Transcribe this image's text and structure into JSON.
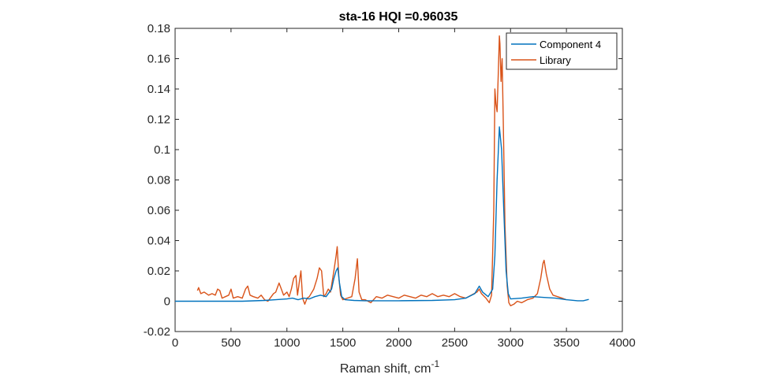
{
  "chart_data": {
    "type": "line",
    "title": "sta-16 HQI =0.96035",
    "xlabel": "Raman shift, cm",
    "xlabel_superscript": "-1",
    "ylabel": "",
    "xlim": [
      0,
      4000
    ],
    "ylim": [
      -0.02,
      0.18
    ],
    "x_ticks": [
      0,
      500,
      1000,
      1500,
      2000,
      2500,
      3000,
      3500,
      4000
    ],
    "x_tick_labels": [
      "0",
      "500",
      "1000",
      "1500",
      "2000",
      "2500",
      "3000",
      "3500",
      "4000"
    ],
    "y_ticks": [
      -0.02,
      0,
      0.02,
      0.04,
      0.06,
      0.08,
      0.1,
      0.12,
      0.14,
      0.16,
      0.18
    ],
    "y_tick_labels": [
      "-0.02",
      "0",
      "0.02",
      "0.04",
      "0.06",
      "0.08",
      "0.1",
      "0.12",
      "0.14",
      "0.16",
      "0.18"
    ],
    "grid": false,
    "legend_position": "top-right",
    "series": [
      {
        "name": "Component 4",
        "color": "#0072BD",
        "points": [
          [
            0,
            0.0
          ],
          [
            300,
            0.0
          ],
          [
            600,
            0.0
          ],
          [
            800,
            0.0005
          ],
          [
            900,
            0.001
          ],
          [
            1000,
            0.0015
          ],
          [
            1050,
            0.002
          ],
          [
            1100,
            0.001
          ],
          [
            1150,
            0.002
          ],
          [
            1200,
            0.0015
          ],
          [
            1250,
            0.003
          ],
          [
            1300,
            0.004
          ],
          [
            1350,
            0.003
          ],
          [
            1400,
            0.008
          ],
          [
            1420,
            0.015
          ],
          [
            1440,
            0.02
          ],
          [
            1455,
            0.022
          ],
          [
            1470,
            0.012
          ],
          [
            1490,
            0.003
          ],
          [
            1520,
            0.001
          ],
          [
            1600,
            0.0005
          ],
          [
            1700,
            0.0003
          ],
          [
            2000,
            0.0003
          ],
          [
            2300,
            0.0005
          ],
          [
            2500,
            0.001
          ],
          [
            2600,
            0.002
          ],
          [
            2680,
            0.005
          ],
          [
            2720,
            0.01
          ],
          [
            2750,
            0.006
          ],
          [
            2800,
            0.003
          ],
          [
            2840,
            0.008
          ],
          [
            2860,
            0.03
          ],
          [
            2880,
            0.08
          ],
          [
            2900,
            0.115
          ],
          [
            2920,
            0.1
          ],
          [
            2940,
            0.06
          ],
          [
            2960,
            0.02
          ],
          [
            2980,
            0.005
          ],
          [
            3000,
            0.0015
          ],
          [
            3100,
            0.002
          ],
          [
            3200,
            0.003
          ],
          [
            3300,
            0.0025
          ],
          [
            3400,
            0.002
          ],
          [
            3500,
            0.001
          ],
          [
            3600,
            0.0003
          ],
          [
            3650,
            0.0003
          ],
          [
            3700,
            0.0012
          ]
        ]
      },
      {
        "name": "Library",
        "color": "#D95319",
        "points": [
          [
            200,
            0.007
          ],
          [
            210,
            0.009
          ],
          [
            230,
            0.005
          ],
          [
            260,
            0.006
          ],
          [
            300,
            0.004
          ],
          [
            330,
            0.005
          ],
          [
            360,
            0.004
          ],
          [
            380,
            0.008
          ],
          [
            400,
            0.007
          ],
          [
            420,
            0.002
          ],
          [
            450,
            0.003
          ],
          [
            480,
            0.004
          ],
          [
            500,
            0.008
          ],
          [
            520,
            0.002
          ],
          [
            560,
            0.003
          ],
          [
            600,
            0.002
          ],
          [
            630,
            0.008
          ],
          [
            650,
            0.01
          ],
          [
            670,
            0.004
          ],
          [
            700,
            0.003
          ],
          [
            740,
            0.002
          ],
          [
            770,
            0.004
          ],
          [
            800,
            0.001
          ],
          [
            830,
            0.0
          ],
          [
            860,
            0.003
          ],
          [
            880,
            0.005
          ],
          [
            900,
            0.006
          ],
          [
            930,
            0.012
          ],
          [
            950,
            0.008
          ],
          [
            970,
            0.004
          ],
          [
            1000,
            0.006
          ],
          [
            1020,
            0.003
          ],
          [
            1040,
            0.008
          ],
          [
            1060,
            0.015
          ],
          [
            1080,
            0.017
          ],
          [
            1095,
            0.004
          ],
          [
            1110,
            0.012
          ],
          [
            1125,
            0.02
          ],
          [
            1140,
            0.002
          ],
          [
            1160,
            -0.002
          ],
          [
            1180,
            0.002
          ],
          [
            1200,
            0.003
          ],
          [
            1240,
            0.008
          ],
          [
            1270,
            0.015
          ],
          [
            1290,
            0.022
          ],
          [
            1310,
            0.02
          ],
          [
            1330,
            0.003
          ],
          [
            1350,
            0.005
          ],
          [
            1370,
            0.008
          ],
          [
            1390,
            0.006
          ],
          [
            1420,
            0.02
          ],
          [
            1440,
            0.03
          ],
          [
            1450,
            0.036
          ],
          [
            1465,
            0.015
          ],
          [
            1480,
            0.004
          ],
          [
            1500,
            0.001
          ],
          [
            1540,
            0.002
          ],
          [
            1580,
            0.003
          ],
          [
            1610,
            0.015
          ],
          [
            1630,
            0.028
          ],
          [
            1645,
            0.006
          ],
          [
            1670,
            0.001
          ],
          [
            1700,
            0.001
          ],
          [
            1750,
            -0.001
          ],
          [
            1800,
            0.003
          ],
          [
            1850,
            0.002
          ],
          [
            1900,
            0.004
          ],
          [
            1950,
            0.003
          ],
          [
            2000,
            0.002
          ],
          [
            2050,
            0.004
          ],
          [
            2100,
            0.003
          ],
          [
            2150,
            0.002
          ],
          [
            2200,
            0.004
          ],
          [
            2250,
            0.003
          ],
          [
            2300,
            0.005
          ],
          [
            2350,
            0.003
          ],
          [
            2400,
            0.004
          ],
          [
            2450,
            0.003
          ],
          [
            2500,
            0.005
          ],
          [
            2550,
            0.003
          ],
          [
            2600,
            0.002
          ],
          [
            2650,
            0.004
          ],
          [
            2700,
            0.006
          ],
          [
            2720,
            0.008
          ],
          [
            2740,
            0.005
          ],
          [
            2780,
            0.002
          ],
          [
            2810,
            -0.001
          ],
          [
            2830,
            0.004
          ],
          [
            2850,
            0.06
          ],
          [
            2860,
            0.14
          ],
          [
            2870,
            0.13
          ],
          [
            2880,
            0.125
          ],
          [
            2890,
            0.15
          ],
          [
            2900,
            0.175
          ],
          [
            2905,
            0.17
          ],
          [
            2915,
            0.145
          ],
          [
            2925,
            0.16
          ],
          [
            2935,
            0.12
          ],
          [
            2950,
            0.05
          ],
          [
            2970,
            0.01
          ],
          [
            2985,
            -0.001
          ],
          [
            3000,
            -0.003
          ],
          [
            3030,
            -0.002
          ],
          [
            3060,
            0.0
          ],
          [
            3100,
            -0.001
          ],
          [
            3150,
            0.001
          ],
          [
            3200,
            0.002
          ],
          [
            3240,
            0.005
          ],
          [
            3270,
            0.015
          ],
          [
            3290,
            0.025
          ],
          [
            3300,
            0.027
          ],
          [
            3320,
            0.018
          ],
          [
            3350,
            0.008
          ],
          [
            3380,
            0.004
          ],
          [
            3420,
            0.003
          ],
          [
            3460,
            0.002
          ],
          [
            3500,
            0.001
          ]
        ]
      }
    ]
  }
}
